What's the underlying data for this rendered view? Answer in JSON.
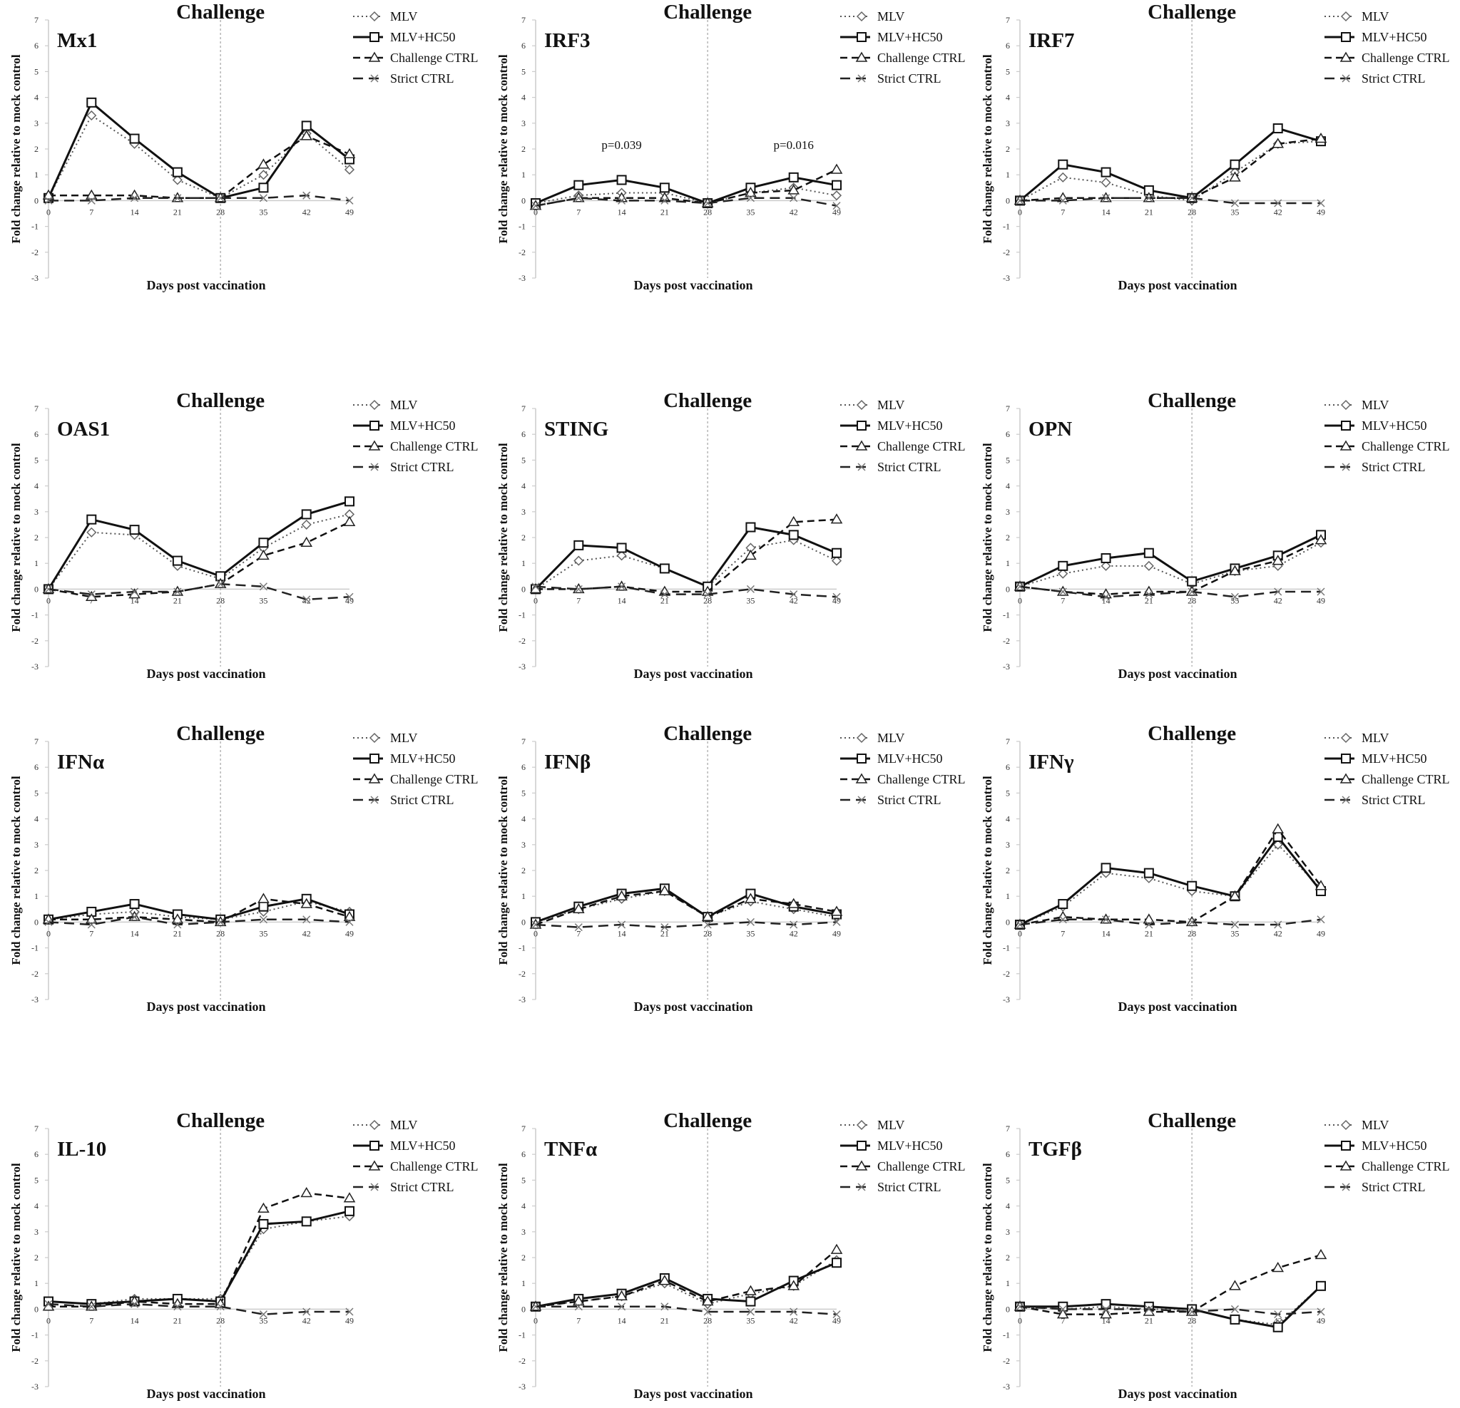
{
  "chart_data": [
    {
      "type": "line",
      "title": "Mx1",
      "challenge_label": "Challenge",
      "xlabel": "Days post vaccination",
      "ylabel": "Fold change relative to mock control",
      "ylim": [
        -3,
        7
      ],
      "x": [
        0,
        7,
        14,
        21,
        28,
        35,
        42,
        49
      ],
      "series": [
        {
          "name": "MLV",
          "values": [
            0.1,
            3.3,
            2.2,
            0.8,
            0.1,
            1.0,
            2.6,
            1.2
          ]
        },
        {
          "name": "MLV+HC50",
          "values": [
            0.1,
            3.8,
            2.4,
            1.1,
            0.1,
            0.5,
            2.9,
            1.6
          ]
        },
        {
          "name": "Challenge CTRL",
          "values": [
            0.2,
            0.2,
            0.2,
            0.1,
            0.1,
            1.4,
            2.5,
            1.8
          ]
        },
        {
          "name": "Strict CTRL",
          "values": [
            0.0,
            0.0,
            0.1,
            0.1,
            0.1,
            0.1,
            0.2,
            0.0
          ]
        }
      ]
    },
    {
      "type": "line",
      "title": "IRF3",
      "challenge_label": "Challenge",
      "xlabel": "Days post vaccination",
      "ylabel": "Fold change relative to mock control",
      "ylim": [
        -3,
        7
      ],
      "x": [
        0,
        7,
        14,
        21,
        28,
        35,
        42,
        49
      ],
      "annotations": [
        "p=0.039",
        "p=0.016"
      ],
      "series": [
        {
          "name": "MLV",
          "values": [
            -0.1,
            0.2,
            0.3,
            0.3,
            -0.1,
            0.3,
            0.5,
            0.2
          ]
        },
        {
          "name": "MLV+HC50",
          "values": [
            -0.1,
            0.6,
            0.8,
            0.5,
            -0.1,
            0.5,
            0.9,
            0.6
          ]
        },
        {
          "name": "Challenge CTRL",
          "values": [
            -0.2,
            0.1,
            0.1,
            0.1,
            -0.1,
            0.3,
            0.4,
            1.2
          ]
        },
        {
          "name": "Strict CTRL",
          "values": [
            -0.2,
            0.1,
            0.0,
            0.0,
            -0.1,
            0.1,
            0.1,
            -0.2
          ]
        }
      ]
    },
    {
      "type": "line",
      "title": "IRF7",
      "challenge_label": "Challenge",
      "xlabel": "Days post vaccination",
      "ylabel": "Fold change relative to mock control",
      "ylim": [
        -3,
        7
      ],
      "x": [
        0,
        7,
        14,
        21,
        28,
        35,
        42,
        49
      ],
      "series": [
        {
          "name": "MLV",
          "values": [
            0.0,
            0.9,
            0.7,
            0.2,
            0.0,
            1.1,
            2.2,
            2.3
          ]
        },
        {
          "name": "MLV+HC50",
          "values": [
            0.0,
            1.4,
            1.1,
            0.4,
            0.1,
            1.4,
            2.8,
            2.3
          ]
        },
        {
          "name": "Challenge CTRL",
          "values": [
            0.0,
            0.1,
            0.1,
            0.1,
            0.1,
            0.9,
            2.2,
            2.4
          ]
        },
        {
          "name": "Strict CTRL",
          "values": [
            0.0,
            0.0,
            0.1,
            0.1,
            0.1,
            -0.1,
            -0.1,
            -0.1
          ]
        }
      ]
    },
    {
      "type": "line",
      "title": "OAS1",
      "challenge_label": "Challenge",
      "xlabel": "Days post vaccination",
      "ylabel": "Fold change relative to mock control",
      "ylim": [
        -3,
        7
      ],
      "x": [
        0,
        7,
        14,
        21,
        28,
        35,
        42,
        49
      ],
      "series": [
        {
          "name": "MLV",
          "values": [
            0.0,
            2.2,
            2.1,
            0.9,
            0.4,
            1.6,
            2.5,
            2.9
          ]
        },
        {
          "name": "MLV+HC50",
          "values": [
            0.0,
            2.7,
            2.3,
            1.1,
            0.5,
            1.8,
            2.9,
            3.4
          ]
        },
        {
          "name": "Challenge CTRL",
          "values": [
            0.0,
            -0.3,
            -0.2,
            -0.1,
            0.2,
            1.3,
            1.8,
            2.6
          ]
        },
        {
          "name": "Strict CTRL",
          "values": [
            0.0,
            -0.2,
            -0.1,
            -0.1,
            0.2,
            0.1,
            -0.4,
            -0.3
          ]
        }
      ]
    },
    {
      "type": "line",
      "title": "STING",
      "challenge_label": "Challenge",
      "xlabel": "Days post vaccination",
      "ylabel": "Fold change relative to mock control",
      "ylim": [
        -3,
        7
      ],
      "x": [
        0,
        7,
        14,
        21,
        28,
        35,
        42,
        49
      ],
      "series": [
        {
          "name": "MLV",
          "values": [
            0.0,
            1.1,
            1.3,
            0.8,
            0.1,
            1.6,
            1.9,
            1.1
          ]
        },
        {
          "name": "MLV+HC50",
          "values": [
            0.0,
            1.7,
            1.6,
            0.8,
            0.1,
            2.4,
            2.1,
            1.4
          ]
        },
        {
          "name": "Challenge CTRL",
          "values": [
            0.0,
            0.0,
            0.1,
            -0.1,
            -0.1,
            1.3,
            2.6,
            2.7
          ]
        },
        {
          "name": "Strict CTRL",
          "values": [
            0.1,
            0.0,
            0.1,
            -0.2,
            -0.2,
            0.0,
            -0.2,
            -0.3
          ]
        }
      ]
    },
    {
      "type": "line",
      "title": "OPN",
      "challenge_label": "Challenge",
      "xlabel": "Days post vaccination",
      "ylabel": "Fold change relative to mock control",
      "ylim": [
        -3,
        7
      ],
      "x": [
        0,
        7,
        14,
        21,
        28,
        35,
        42,
        49
      ],
      "series": [
        {
          "name": "MLV",
          "values": [
            0.1,
            0.6,
            0.9,
            0.9,
            0.2,
            0.7,
            0.9,
            1.8
          ]
        },
        {
          "name": "MLV+HC50",
          "values": [
            0.1,
            0.9,
            1.2,
            1.4,
            0.3,
            0.8,
            1.3,
            2.1
          ]
        },
        {
          "name": "Challenge CTRL",
          "values": [
            0.1,
            -0.1,
            -0.2,
            -0.1,
            -0.1,
            0.7,
            1.1,
            1.9
          ]
        },
        {
          "name": "Strict CTRL",
          "values": [
            0.1,
            -0.1,
            -0.3,
            -0.2,
            -0.1,
            -0.3,
            -0.1,
            -0.1
          ]
        }
      ]
    },
    {
      "type": "line",
      "title": "IFNα",
      "challenge_label": "Challenge",
      "xlabel": "Days post vaccination",
      "ylabel": "Fold change relative to mock control",
      "ylim": [
        -3,
        7
      ],
      "x": [
        0,
        7,
        14,
        21,
        28,
        35,
        42,
        49
      ],
      "series": [
        {
          "name": "MLV",
          "values": [
            0.1,
            0.3,
            0.4,
            0.2,
            0.1,
            0.4,
            0.8,
            0.4
          ]
        },
        {
          "name": "MLV+HC50",
          "values": [
            0.1,
            0.4,
            0.7,
            0.3,
            0.1,
            0.6,
            0.9,
            0.3
          ]
        },
        {
          "name": "Challenge CTRL",
          "values": [
            0.1,
            0.1,
            0.2,
            0.1,
            0.0,
            0.9,
            0.7,
            0.2
          ]
        },
        {
          "name": "Strict CTRL",
          "values": [
            0.0,
            -0.1,
            0.2,
            -0.1,
            0.0,
            0.1,
            0.1,
            0.0
          ]
        }
      ]
    },
    {
      "type": "line",
      "title": "IFNβ",
      "challenge_label": "Challenge",
      "xlabel": "Days post vaccination",
      "ylabel": "Fold change relative to mock control",
      "ylim": [
        -3,
        7
      ],
      "x": [
        0,
        7,
        14,
        21,
        28,
        35,
        42,
        49
      ],
      "series": [
        {
          "name": "MLV",
          "values": [
            0.0,
            0.5,
            0.9,
            1.2,
            0.2,
            0.8,
            0.5,
            0.2
          ]
        },
        {
          "name": "MLV+HC50",
          "values": [
            0.0,
            0.6,
            1.1,
            1.3,
            0.2,
            1.1,
            0.6,
            0.3
          ]
        },
        {
          "name": "Challenge CTRL",
          "values": [
            -0.1,
            0.5,
            1.0,
            1.2,
            0.2,
            0.9,
            0.7,
            0.4
          ]
        },
        {
          "name": "Strict CTRL",
          "values": [
            -0.1,
            -0.2,
            -0.1,
            -0.2,
            -0.1,
            0.0,
            -0.1,
            0.0
          ]
        }
      ]
    },
    {
      "type": "line",
      "title": "IFNγ",
      "challenge_label": "Challenge",
      "xlabel": "Days post vaccination",
      "ylabel": "Fold change relative to mock control",
      "ylim": [
        -3,
        7
      ],
      "x": [
        0,
        7,
        14,
        21,
        28,
        35,
        42,
        49
      ],
      "series": [
        {
          "name": "MLV",
          "values": [
            -0.1,
            0.6,
            1.9,
            1.7,
            1.2,
            1.0,
            3.0,
            1.3
          ]
        },
        {
          "name": "MLV+HC50",
          "values": [
            -0.1,
            0.7,
            2.1,
            1.9,
            1.4,
            1.0,
            3.3,
            1.2
          ]
        },
        {
          "name": "Challenge CTRL",
          "values": [
            -0.1,
            0.2,
            0.1,
            0.1,
            0.0,
            1.0,
            3.6,
            1.4
          ]
        },
        {
          "name": "Strict CTRL",
          "values": [
            -0.1,
            0.1,
            0.1,
            -0.1,
            0.0,
            -0.1,
            -0.1,
            0.1
          ]
        }
      ]
    },
    {
      "type": "line",
      "title": "IL-10",
      "challenge_label": "Challenge",
      "xlabel": "Days post vaccination",
      "ylabel": "Fold change relative to mock control",
      "ylim": [
        -3,
        7
      ],
      "x": [
        0,
        7,
        14,
        21,
        28,
        35,
        42,
        49
      ],
      "series": [
        {
          "name": "MLV",
          "values": [
            0.3,
            0.2,
            0.4,
            0.4,
            0.4,
            3.1,
            3.4,
            3.6
          ]
        },
        {
          "name": "MLV+HC50",
          "values": [
            0.3,
            0.2,
            0.3,
            0.4,
            0.3,
            3.3,
            3.4,
            3.8
          ]
        },
        {
          "name": "Challenge CTRL",
          "values": [
            0.1,
            0.1,
            0.3,
            0.2,
            0.2,
            3.9,
            4.5,
            4.3
          ]
        },
        {
          "name": "Strict CTRL",
          "values": [
            0.2,
            0.1,
            0.2,
            0.1,
            0.1,
            -0.2,
            -0.1,
            -0.1
          ]
        }
      ]
    },
    {
      "type": "line",
      "title": "TNFα",
      "challenge_label": "Challenge",
      "xlabel": "Days post vaccination",
      "ylabel": "Fold change relative to mock control",
      "ylim": [
        -3,
        7
      ],
      "x": [
        0,
        7,
        14,
        21,
        28,
        35,
        42,
        49
      ],
      "series": [
        {
          "name": "MLV",
          "values": [
            0.1,
            0.3,
            0.5,
            1.0,
            0.2,
            0.6,
            0.9,
            1.9
          ]
        },
        {
          "name": "MLV+HC50",
          "values": [
            0.1,
            0.4,
            0.6,
            1.2,
            0.4,
            0.3,
            1.1,
            1.8
          ]
        },
        {
          "name": "Challenge CTRL",
          "values": [
            0.1,
            0.3,
            0.5,
            1.1,
            0.3,
            0.7,
            0.9,
            2.3
          ]
        },
        {
          "name": "Strict CTRL",
          "values": [
            0.1,
            0.1,
            0.1,
            0.1,
            -0.1,
            -0.1,
            -0.1,
            -0.2
          ]
        }
      ]
    },
    {
      "type": "line",
      "title": "TGFβ",
      "challenge_label": "Challenge",
      "xlabel": "Days post vaccination",
      "ylabel": "Fold change relative to mock control",
      "ylim": [
        -3,
        7
      ],
      "x": [
        0,
        7,
        14,
        21,
        28,
        35,
        42,
        49
      ],
      "series": [
        {
          "name": "MLV",
          "values": [
            0.1,
            0.0,
            0.1,
            0.0,
            0.0,
            -0.4,
            -0.6,
            0.9
          ]
        },
        {
          "name": "MLV+HC50",
          "values": [
            0.1,
            0.1,
            0.2,
            0.1,
            0.0,
            -0.4,
            -0.7,
            0.9
          ]
        },
        {
          "name": "Challenge CTRL",
          "values": [
            0.1,
            -0.2,
            -0.2,
            -0.1,
            -0.1,
            0.9,
            1.6,
            2.1
          ]
        },
        {
          "name": "Strict CTRL",
          "values": [
            0.1,
            0.0,
            0.0,
            0.0,
            -0.1,
            0.0,
            -0.2,
            -0.1
          ]
        }
      ]
    }
  ]
}
